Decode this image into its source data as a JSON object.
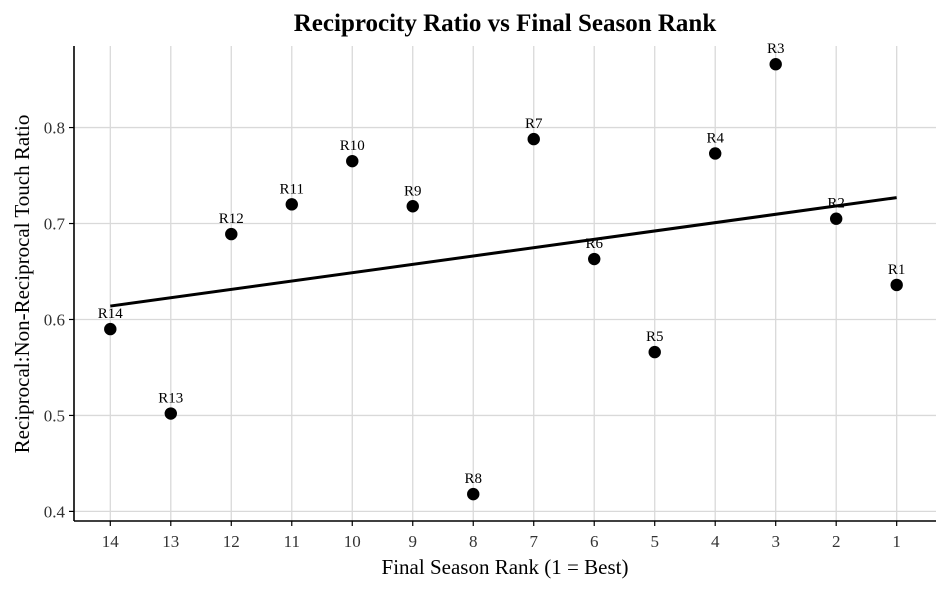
{
  "chart_data": {
    "type": "scatter",
    "title": "Reciprocity Ratio vs Final Season Rank",
    "xlabel": "Final Season Rank (1 = Best)",
    "ylabel": "Reciprocal:Non-Reciprocal Touch Ratio",
    "x_reversed": true,
    "xlim": [
      14.6,
      0.35
    ],
    "ylim": [
      0.39,
      0.885
    ],
    "x_ticks": [
      14,
      13,
      12,
      11,
      10,
      9,
      8,
      7,
      6,
      5,
      4,
      3,
      2,
      1
    ],
    "y_ticks": [
      0.4,
      0.5,
      0.6,
      0.7,
      0.8
    ],
    "y_tick_labels": [
      "0.4",
      "0.5",
      "0.6",
      "0.7",
      "0.8"
    ],
    "grid": true,
    "colors": {
      "points": "#000000",
      "trend": "#000000",
      "grid": "#d9d9d9"
    },
    "points": [
      {
        "label": "R1",
        "x": 1,
        "y": 0.636
      },
      {
        "label": "R2",
        "x": 2,
        "y": 0.705
      },
      {
        "label": "R3",
        "x": 3,
        "y": 0.866
      },
      {
        "label": "R4",
        "x": 4,
        "y": 0.773
      },
      {
        "label": "R5",
        "x": 5,
        "y": 0.566
      },
      {
        "label": "R6",
        "x": 6,
        "y": 0.663
      },
      {
        "label": "R7",
        "x": 7,
        "y": 0.788
      },
      {
        "label": "R8",
        "x": 8,
        "y": 0.418
      },
      {
        "label": "R9",
        "x": 9,
        "y": 0.718
      },
      {
        "label": "R10",
        "x": 10,
        "y": 0.765
      },
      {
        "label": "R11",
        "x": 11,
        "y": 0.72
      },
      {
        "label": "R12",
        "x": 12,
        "y": 0.689
      },
      {
        "label": "R13",
        "x": 13,
        "y": 0.502
      },
      {
        "label": "R14",
        "x": 14,
        "y": 0.59
      }
    ],
    "trend_line": {
      "x": [
        14,
        1
      ],
      "y": [
        0.614,
        0.727
      ]
    }
  }
}
